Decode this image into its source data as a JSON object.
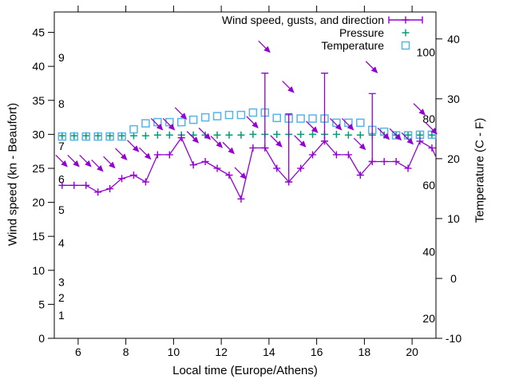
{
  "axes": {
    "x_label": "Local time (Europe/Athens)",
    "y_label": "Wind speed (kn - Beaufort)",
    "y2_label": "Temperature (C - F)",
    "x_ticks": [
      6,
      8,
      10,
      12,
      14,
      16,
      18,
      20
    ],
    "y_ticks_kn": [
      0,
      5,
      10,
      15,
      20,
      25,
      30,
      35,
      40,
      45
    ],
    "y2_ticks_celsius": [
      -10,
      0,
      10,
      20,
      30,
      40
    ],
    "fahrenheit_inner_labels": [
      20,
      40,
      60,
      80,
      100
    ],
    "beaufort_inner_labels": [
      {
        "label": "1",
        "kn": 3.4
      },
      {
        "label": "2",
        "kn": 6.0
      },
      {
        "label": "3",
        "kn": 8.3
      },
      {
        "label": "4",
        "kn": 14.0
      },
      {
        "label": "5",
        "kn": 18.9
      },
      {
        "label": "6",
        "kn": 23.4
      },
      {
        "label": "7",
        "kn": 28.3
      },
      {
        "label": "8",
        "kn": 34.5
      },
      {
        "label": "9",
        "kn": 41.3
      }
    ],
    "x_range": [
      5,
      21
    ],
    "y_range_kn": [
      0,
      48
    ],
    "y2_range_celsius": [
      -10,
      44.5
    ]
  },
  "legend": [
    {
      "label": "Wind speed, gusts, and direction",
      "color": "#9400d3",
      "marker": "errorbar-plus"
    },
    {
      "label": "Pressure",
      "color": "#009e73",
      "marker": "plus"
    },
    {
      "label": "Temperature",
      "color": "#56b4e9",
      "marker": "square"
    }
  ],
  "colors": {
    "wind": "#9400d3",
    "pressure": "#009e73",
    "temperature": "#56b4e9",
    "axis": "#000000",
    "background": "#ffffff"
  },
  "chart_data": {
    "type": "line",
    "description": "Wind speed line with + markers, vertical gust error bars, wind-direction arrows (pointing SE = wind from NW), pressure + markers (no visible scale), temperature squares on right C/F axis. X is local time in hours.",
    "x_hours": [
      5.33,
      5.83,
      6.33,
      6.83,
      7.33,
      7.83,
      8.33,
      8.83,
      9.33,
      9.83,
      10.33,
      10.83,
      11.33,
      11.83,
      12.33,
      12.83,
      13.33,
      13.83,
      14.33,
      14.83,
      15.33,
      15.83,
      16.33,
      16.83,
      17.33,
      17.83,
      18.33,
      18.83,
      19.33,
      19.83,
      20.33,
      20.83
    ],
    "series": [
      {
        "name": "Wind speed, gusts, and direction",
        "wind_kn": [
          22.5,
          22.5,
          22.5,
          21.5,
          22,
          23.5,
          24,
          23,
          27,
          27,
          29.5,
          25.5,
          26,
          25,
          24,
          20.5,
          28,
          28,
          25,
          23,
          25,
          27,
          29,
          27,
          27,
          24,
          26,
          26,
          26,
          25,
          29,
          28
        ],
        "gust_kn": [
          null,
          null,
          null,
          null,
          null,
          null,
          null,
          null,
          null,
          null,
          null,
          null,
          null,
          null,
          null,
          null,
          null,
          39,
          null,
          33,
          null,
          null,
          39,
          null,
          null,
          null,
          36,
          null,
          null,
          null,
          null,
          null
        ],
        "arrow_kn": [
          26,
          26,
          26,
          25.3,
          25.8,
          27,
          28.2,
          27.1,
          31.4,
          31.4,
          33,
          29.5,
          30,
          28.8,
          27.9,
          24.2,
          31.7,
          42.8,
          28.9,
          36.9,
          28.9,
          31,
          null,
          31.4,
          31.4,
          28.5,
          39.8,
          30,
          29.9,
          29.3,
          33.6,
          30.8
        ],
        "tail_extension": {
          "x": 21.15,
          "kn": 25.5
        }
      },
      {
        "name": "Pressure",
        "values_on_left_scale_kn": [
          29.8,
          29.8,
          29.8,
          29.8,
          29.8,
          29.8,
          29.8,
          29.8,
          29.9,
          29.9,
          29.9,
          29.9,
          29.9,
          29.9,
          29.9,
          29.9,
          30,
          30,
          30,
          30,
          30,
          30,
          30,
          30,
          29.9,
          29.9,
          29.9,
          29.9,
          29.9,
          29.9,
          29.9,
          29.9
        ]
      },
      {
        "name": "Temperature",
        "celsius": [
          23.7,
          23.7,
          23.7,
          23.7,
          23.7,
          23.7,
          24.9,
          25.9,
          26.1,
          26.1,
          26.1,
          26.5,
          26.9,
          27.1,
          27.3,
          27.3,
          27.7,
          27.7,
          26.8,
          26.7,
          26.7,
          26.7,
          26.7,
          26,
          26,
          26,
          24.8,
          24.5,
          23.9,
          23.9,
          24,
          24
        ]
      }
    ]
  }
}
